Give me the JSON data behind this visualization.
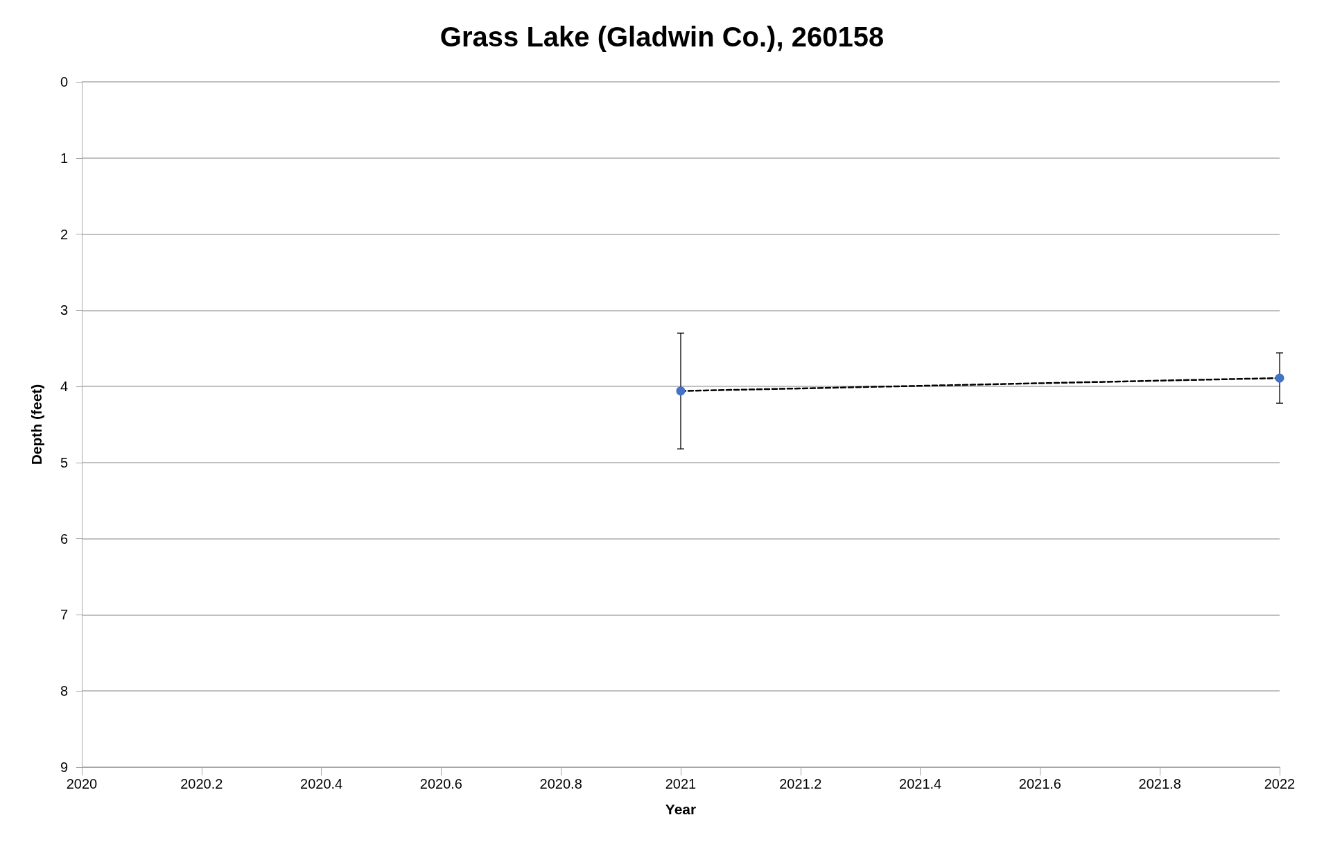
{
  "chart_data": {
    "type": "line",
    "title": "Grass Lake (Gladwin Co.), 260158",
    "xlabel": "Year",
    "ylabel": "Depth (feet)",
    "x": [
      2021,
      2022
    ],
    "series": [
      {
        "color": "#4472c4",
        "values": [
          4.06,
          3.89
        ],
        "errors": [
          0.76,
          0.33
        ]
      }
    ],
    "xlim": [
      2020,
      2022
    ],
    "xticks": [
      2020,
      2020.2,
      2020.4,
      2020.6,
      2020.8,
      2021,
      2021.2,
      2021.4,
      2021.6,
      2021.8,
      2022
    ],
    "ylim": [
      9,
      0
    ],
    "yticks": [
      0,
      1,
      2,
      3,
      4,
      5,
      6,
      7,
      8,
      9
    ],
    "grid": "y",
    "marker": "circle",
    "line_style": "dashed"
  }
}
